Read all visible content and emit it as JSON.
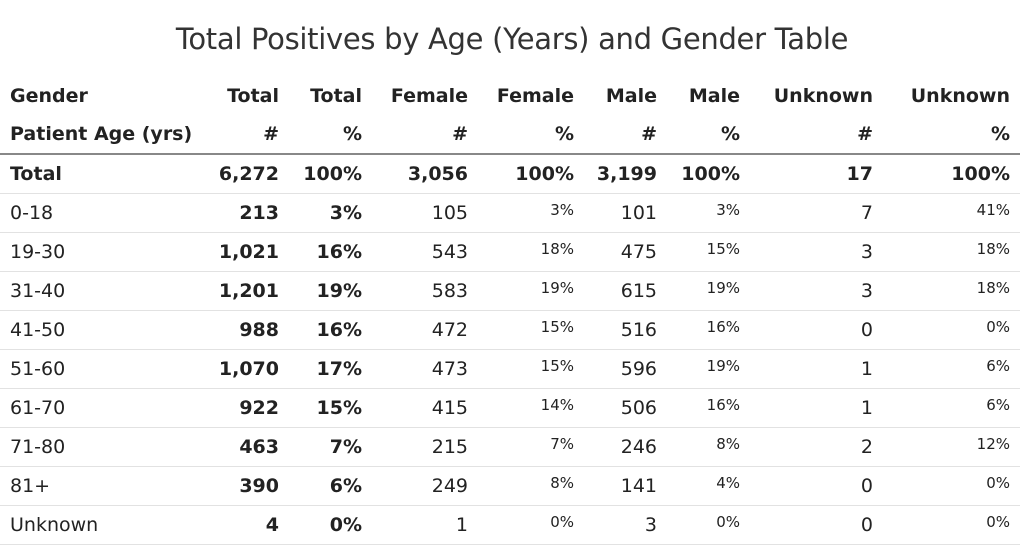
{
  "chart_data": {
    "type": "table",
    "title": "Total Positives by Age (Years) and Gender Table",
    "header_row_1": [
      "Gender",
      "Total",
      "Total",
      "Female",
      "Female",
      "Male",
      "Male",
      "Unknown",
      "Unknown"
    ],
    "header_row_2": [
      "Patient Age (yrs)",
      "#",
      "%",
      "#",
      "%",
      "#",
      "%",
      "#",
      "%"
    ],
    "rows": [
      [
        "Total",
        "6,272",
        "100%",
        "3,056",
        "100%",
        "3,199",
        "100%",
        "17",
        "100%"
      ],
      [
        "0-18",
        "213",
        "3%",
        "105",
        "3%",
        "101",
        "3%",
        "7",
        "41%"
      ],
      [
        "19-30",
        "1,021",
        "16%",
        "543",
        "18%",
        "475",
        "15%",
        "3",
        "18%"
      ],
      [
        "31-40",
        "1,201",
        "19%",
        "583",
        "19%",
        "615",
        "19%",
        "3",
        "18%"
      ],
      [
        "41-50",
        "988",
        "16%",
        "472",
        "15%",
        "516",
        "16%",
        "0",
        "0%"
      ],
      [
        "51-60",
        "1,070",
        "17%",
        "473",
        "15%",
        "596",
        "19%",
        "1",
        "6%"
      ],
      [
        "61-70",
        "922",
        "15%",
        "415",
        "14%",
        "506",
        "16%",
        "1",
        "6%"
      ],
      [
        "71-80",
        "463",
        "7%",
        "215",
        "7%",
        "246",
        "8%",
        "2",
        "12%"
      ],
      [
        "81+",
        "390",
        "6%",
        "249",
        "8%",
        "141",
        "4%",
        "0",
        "0%"
      ],
      [
        "Unknown",
        "4",
        "0%",
        "1",
        "0%",
        "3",
        "0%",
        "0",
        "0%"
      ]
    ]
  }
}
